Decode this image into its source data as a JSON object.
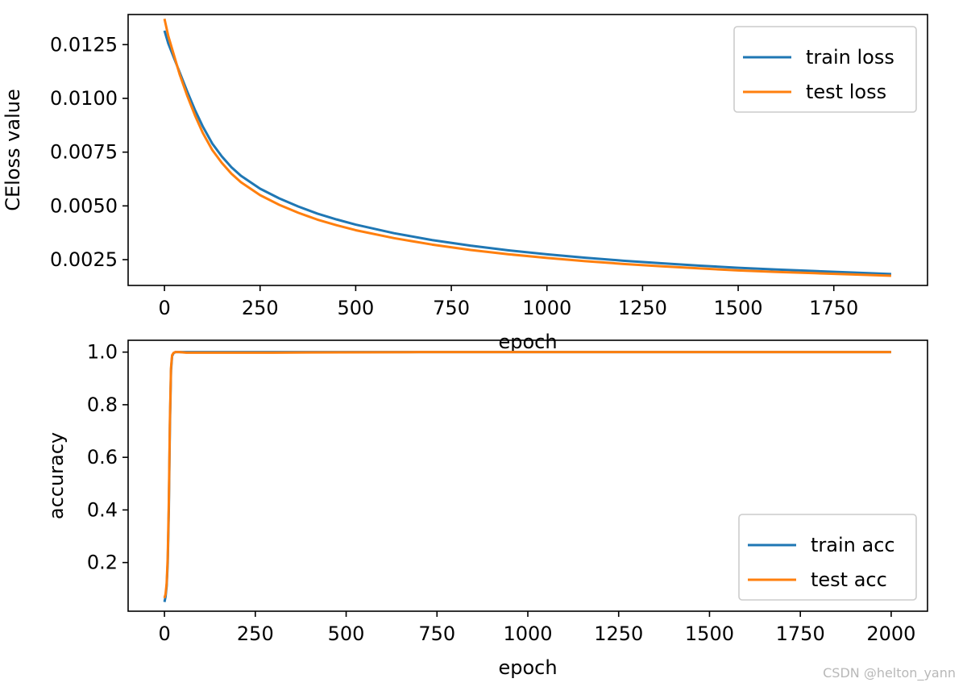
{
  "chart_data": [
    {
      "type": "line",
      "xlabel": "epoch",
      "ylabel": "CEloss value",
      "xlim": [
        -95,
        1995
      ],
      "ylim": [
        0.0013,
        0.0139
      ],
      "xticks": [
        0,
        250,
        500,
        750,
        1000,
        1250,
        1500,
        1750
      ],
      "xtick_labels": [
        "0",
        "250",
        "500",
        "750",
        "1000",
        "1250",
        "1500",
        "1750"
      ],
      "yticks": [
        0.0025,
        0.005,
        0.0075,
        0.01,
        0.0125
      ],
      "ytick_labels": [
        "0.0025",
        "0.0050",
        "0.0075",
        "0.0100",
        "0.0125"
      ],
      "legend_position": "top-right",
      "grid": false,
      "series": [
        {
          "name": "train loss",
          "color": "#1f77b4",
          "x": [
            0,
            10,
            20,
            30,
            40,
            50,
            60,
            80,
            100,
            125,
            150,
            175,
            200,
            250,
            300,
            350,
            400,
            450,
            500,
            600,
            700,
            800,
            900,
            1000,
            1100,
            1200,
            1300,
            1400,
            1500,
            1600,
            1700,
            1800,
            1900
          ],
          "y": [
            0.01315,
            0.01255,
            0.0121,
            0.01165,
            0.0112,
            0.01075,
            0.0103,
            0.00945,
            0.0087,
            0.0079,
            0.0073,
            0.0068,
            0.0064,
            0.0058,
            0.00535,
            0.00497,
            0.00464,
            0.00437,
            0.00413,
            0.00373,
            0.00341,
            0.00315,
            0.00293,
            0.00275,
            0.00259,
            0.00245,
            0.00233,
            0.00222,
            0.00212,
            0.00204,
            0.00197,
            0.0019,
            0.00183
          ]
        },
        {
          "name": "test loss",
          "color": "#ff7f0e",
          "x": [
            0,
            10,
            20,
            30,
            40,
            50,
            60,
            80,
            100,
            125,
            150,
            175,
            200,
            250,
            300,
            350,
            400,
            450,
            500,
            600,
            700,
            800,
            900,
            1000,
            1100,
            1200,
            1300,
            1400,
            1500,
            1600,
            1700,
            1800,
            1900
          ],
          "y": [
            0.0137,
            0.0129,
            0.0123,
            0.0117,
            0.0111,
            0.0106,
            0.0101,
            0.0092,
            0.0084,
            0.0076,
            0.007,
            0.0065,
            0.0061,
            0.0055,
            0.00505,
            0.00468,
            0.00436,
            0.0041,
            0.00387,
            0.0035,
            0.0032,
            0.00295,
            0.00275,
            0.00258,
            0.00243,
            0.0023,
            0.00219,
            0.00209,
            0.002,
            0.00193,
            0.00187,
            0.00181,
            0.00175
          ]
        }
      ]
    },
    {
      "type": "line",
      "xlabel": "epoch",
      "ylabel": "accuracy",
      "xlim": [
        -100,
        2100
      ],
      "ylim": [
        0.015,
        1.045
      ],
      "xticks": [
        0,
        250,
        500,
        750,
        1000,
        1250,
        1500,
        1750,
        2000
      ],
      "xtick_labels": [
        "0",
        "250",
        "500",
        "750",
        "1000",
        "1250",
        "1500",
        "1750",
        "2000"
      ],
      "yticks": [
        0.2,
        0.4,
        0.6,
        0.8,
        1.0
      ],
      "ytick_labels": [
        "0.2",
        "0.4",
        "0.6",
        "0.8",
        "1.0"
      ],
      "legend_position": "lower-right",
      "grid": false,
      "series": [
        {
          "name": "train acc",
          "color": "#1f77b4",
          "x": [
            0,
            3,
            6,
            9,
            12,
            15,
            18,
            21,
            25,
            30,
            40,
            60,
            100,
            300,
            700,
            1000,
            1500,
            2000
          ],
          "y": [
            0.05,
            0.07,
            0.11,
            0.2,
            0.4,
            0.72,
            0.93,
            0.985,
            0.996,
            1.0,
            1.0,
            1.0,
            1.0,
            1.0,
            1.0,
            1.0,
            1.0,
            1.0
          ]
        },
        {
          "name": "test acc",
          "color": "#ff7f0e",
          "x": [
            0,
            3,
            6,
            9,
            12,
            15,
            18,
            21,
            25,
            30,
            40,
            60,
            100,
            300,
            700,
            1000,
            1500,
            2000
          ],
          "y": [
            0.065,
            0.08,
            0.12,
            0.22,
            0.43,
            0.74,
            0.94,
            0.988,
            0.997,
            1.0,
            1.0,
            0.998,
            0.998,
            0.998,
            1.0,
            1.0,
            1.0,
            1.0
          ]
        }
      ]
    }
  ],
  "watermark": "CSDN @helton_yann"
}
